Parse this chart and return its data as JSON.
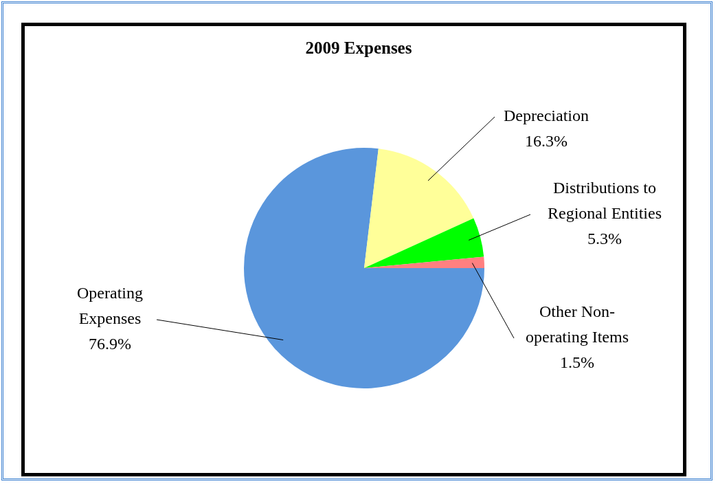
{
  "chart_data": {
    "type": "pie",
    "title": "2009 Expenses",
    "categories": [
      "Operating Expenses",
      "Depreciation",
      "Distributions to Regional Entities",
      "Other Non-operating Items"
    ],
    "values": [
      76.9,
      16.3,
      5.3,
      1.5
    ],
    "colors": [
      "#5a96dc",
      "#ffff99",
      "#00ff00",
      "#ff8080"
    ],
    "value_labels": [
      "76.9%",
      "16.3%",
      "5.3%",
      "1.5%"
    ],
    "legend": false
  }
}
